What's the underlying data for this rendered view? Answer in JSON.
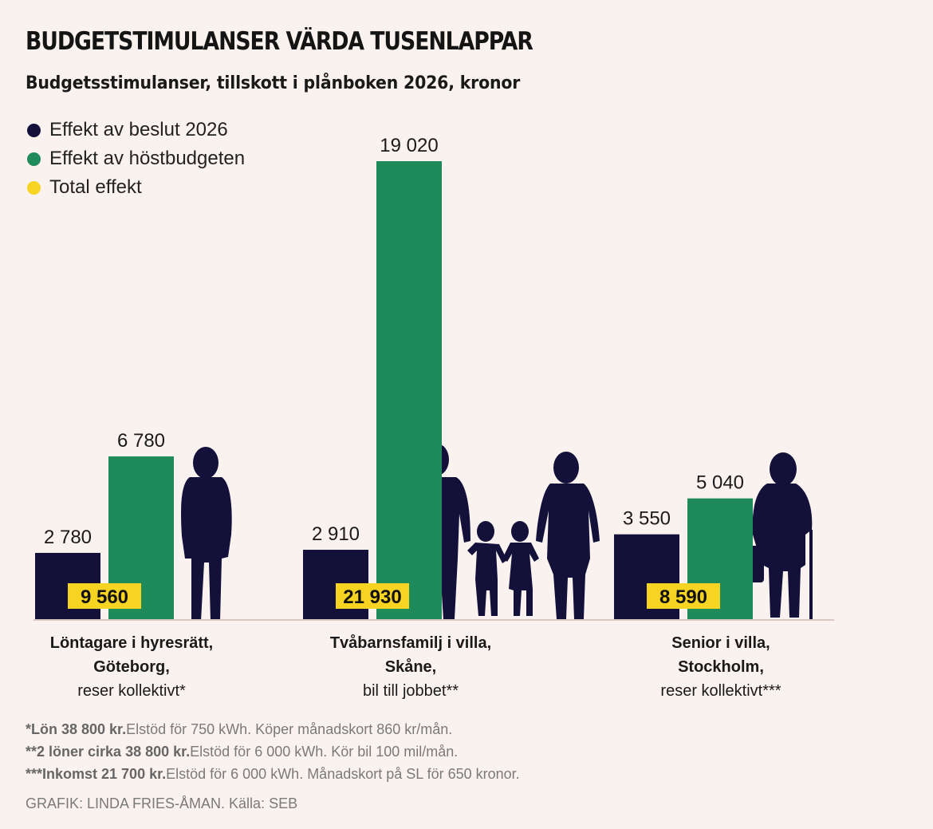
{
  "title": "BUDGETSTIMULANSER VÄRDA TUSENLAPPAR",
  "subtitle": "Budgetsstimulanser, tillskott i plånboken 2026, kronor",
  "colors": {
    "background": "#faf2ef",
    "navy": "#13113a",
    "green": "#1f8a5a",
    "yellow": "#f7d322",
    "silhouette": "#13113a"
  },
  "chart_data": {
    "type": "bar",
    "categories": [
      [
        "Löntagare i hyresrätt,",
        "Göteborg,",
        "reser kollektivt*"
      ],
      [
        "Tvåbarnsfamilj i villa,",
        "Skåne,",
        "bil till jobbet**"
      ],
      [
        "Senior i villa,",
        "Stockholm,",
        "reser kollektivt***"
      ]
    ],
    "series": [
      {
        "name": "Effekt av beslut 2026",
        "color": "#13113a",
        "values": [
          2780,
          2910,
          3550
        ],
        "labels": [
          "2 780",
          "2 910",
          "3 550"
        ]
      },
      {
        "name": "Effekt av höstbudgeten",
        "color": "#1f8a5a",
        "values": [
          6780,
          19020,
          5040
        ],
        "labels": [
          "6 780",
          "19 020",
          "5 040"
        ]
      }
    ],
    "totals": {
      "name": "Total effekt",
      "color": "#f7d322",
      "values": [
        9560,
        21930,
        8590
      ],
      "labels": [
        "9 560",
        "21 930",
        "8 590"
      ]
    },
    "ylim": [
      0,
      19020
    ],
    "grid": false,
    "legend_position": "top-left"
  },
  "footnotes": [
    {
      "bold": "*Lön 38 800 kr.",
      "text": "Elstöd för 750 kWh. Köper månadskort 860 kr/mån."
    },
    {
      "bold": "**2 löner cirka 38 800 kr.",
      "text": "Elstöd för 6 000 kWh. Kör bil 100 mil/mån."
    },
    {
      "bold": "***Inkomst 21 700 kr.",
      "text": "Elstöd för 6 000 kWh. Månadskort på SL för 650 kronor."
    }
  ],
  "credit": "GRAFIK: LINDA FRIES-ÅMAN. Källa: SEB"
}
